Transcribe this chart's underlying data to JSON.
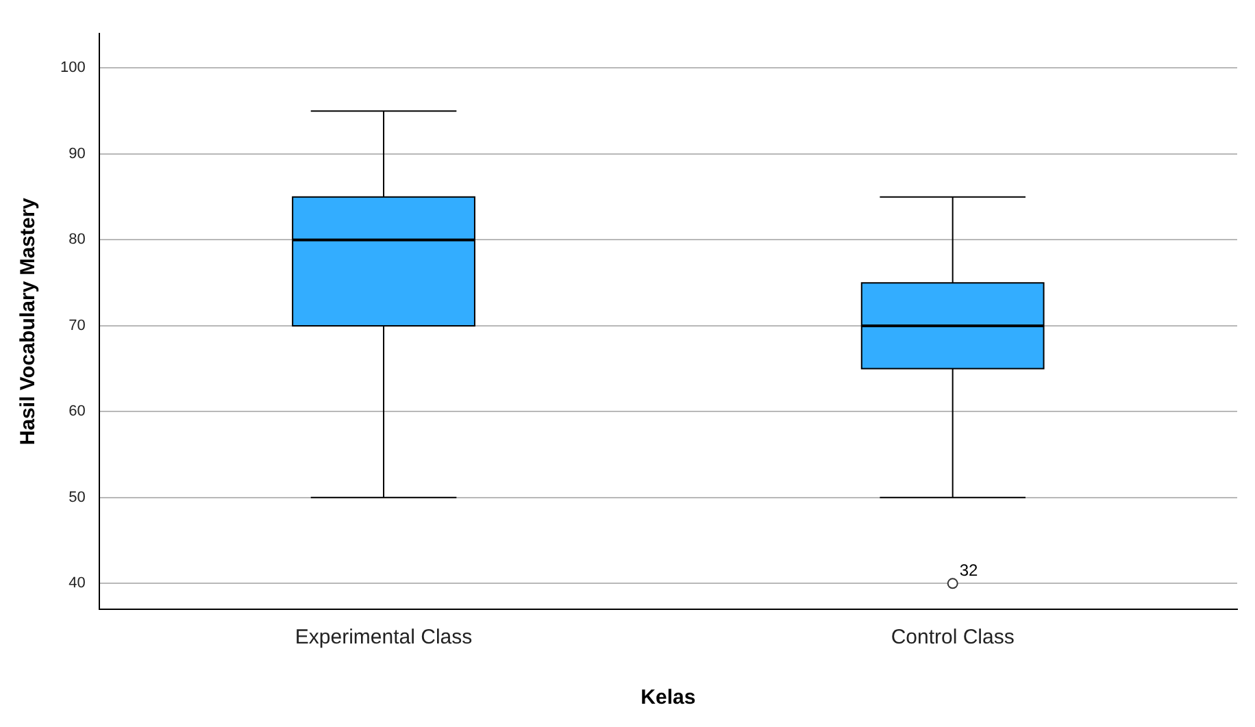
{
  "chart_data": {
    "type": "box",
    "xlabel": "Kelas",
    "ylabel": "Hasil Vocabulary Mastery",
    "categories": [
      "Experimental Class",
      "Control Class"
    ],
    "color": "#33adff",
    "boxes": [
      {
        "low": 50,
        "q1": 70,
        "median": 80,
        "q3": 85,
        "high": 95
      },
      {
        "low": 50,
        "q1": 65,
        "median": 70,
        "q3": 75,
        "high": 85,
        "outliers": [
          40
        ]
      }
    ],
    "ylim": [
      37,
      104
    ],
    "yticks": [
      40,
      50,
      60,
      70,
      80,
      90,
      100
    ],
    "grid": "y",
    "annotations": [
      "32"
    ]
  }
}
